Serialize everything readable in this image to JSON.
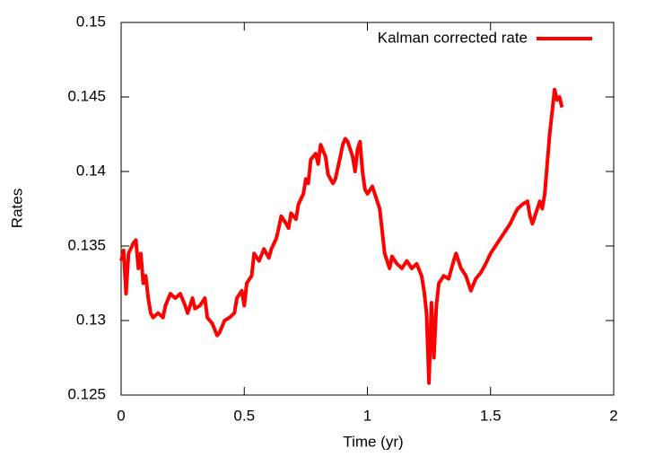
{
  "chart_data": {
    "type": "line",
    "xlabel": "Time (yr)",
    "ylabel": "Rates",
    "legend": "top-right",
    "x": [
      0,
      0.01,
      0.02,
      0.03,
      0.05,
      0.06,
      0.07,
      0.08,
      0.09,
      0.1,
      0.11,
      0.12,
      0.13,
      0.15,
      0.17,
      0.18,
      0.2,
      0.22,
      0.24,
      0.26,
      0.27,
      0.29,
      0.3,
      0.32,
      0.34,
      0.35,
      0.37,
      0.39,
      0.4,
      0.42,
      0.44,
      0.46,
      0.47,
      0.49,
      0.5,
      0.51,
      0.53,
      0.54,
      0.56,
      0.58,
      0.6,
      0.61,
      0.63,
      0.64,
      0.65,
      0.67,
      0.68,
      0.69,
      0.71,
      0.72,
      0.74,
      0.75,
      0.76,
      0.77,
      0.79,
      0.8,
      0.81,
      0.83,
      0.84,
      0.86,
      0.87,
      0.89,
      0.9,
      0.91,
      0.92,
      0.94,
      0.95,
      0.96,
      0.97,
      0.98,
      0.99,
      1.0,
      1.02,
      1.04,
      1.05,
      1.06,
      1.07,
      1.08,
      1.09,
      1.1,
      1.12,
      1.14,
      1.16,
      1.18,
      1.2,
      1.22,
      1.23,
      1.24,
      1.25,
      1.26,
      1.27,
      1.28,
      1.29,
      1.31,
      1.33,
      1.35,
      1.36,
      1.38,
      1.4,
      1.42,
      1.44,
      1.46,
      1.48,
      1.5,
      1.52,
      1.54,
      1.56,
      1.58,
      1.6,
      1.61,
      1.63,
      1.65,
      1.66,
      1.67,
      1.69,
      1.7,
      1.71,
      1.72,
      1.73,
      1.74,
      1.75,
      1.76,
      1.77,
      1.78,
      1.79
    ],
    "series": [
      {
        "name": "Kalman corrected rate",
        "color": "#ff0000",
        "values": [
          0.134,
          0.1347,
          0.1318,
          0.1345,
          0.1352,
          0.1354,
          0.1335,
          0.1345,
          0.1325,
          0.133,
          0.1315,
          0.1305,
          0.1302,
          0.1305,
          0.1302,
          0.131,
          0.1318,
          0.1315,
          0.1318,
          0.131,
          0.1305,
          0.1315,
          0.1308,
          0.131,
          0.1315,
          0.1302,
          0.1298,
          0.129,
          0.1292,
          0.13,
          0.1302,
          0.1305,
          0.1315,
          0.132,
          0.131,
          0.1325,
          0.133,
          0.1345,
          0.134,
          0.1348,
          0.1342,
          0.1348,
          0.1355,
          0.1362,
          0.137,
          0.1365,
          0.1362,
          0.1372,
          0.1368,
          0.1378,
          0.1385,
          0.1395,
          0.1392,
          0.1408,
          0.1412,
          0.1405,
          0.1418,
          0.141,
          0.1398,
          0.1392,
          0.1395,
          0.141,
          0.1418,
          0.1422,
          0.142,
          0.141,
          0.14,
          0.1415,
          0.142,
          0.14,
          0.1388,
          0.1385,
          0.139,
          0.138,
          0.1375,
          0.136,
          0.1345,
          0.134,
          0.1335,
          0.1343,
          0.1338,
          0.1335,
          0.134,
          0.1335,
          0.1338,
          0.133,
          0.132,
          0.1305,
          0.1258,
          0.1312,
          0.1275,
          0.131,
          0.1325,
          0.133,
          0.1328,
          0.134,
          0.1345,
          0.1335,
          0.133,
          0.132,
          0.1328,
          0.1332,
          0.1338,
          0.1345,
          0.135,
          0.1355,
          0.136,
          0.1365,
          0.1372,
          0.1375,
          0.1378,
          0.138,
          0.137,
          0.1365,
          0.1375,
          0.138,
          0.1375,
          0.1385,
          0.1405,
          0.1425,
          0.144,
          0.1455,
          0.1448,
          0.145,
          0.1443
        ]
      }
    ],
    "xlim": [
      0,
      2
    ],
    "xticks": [
      0,
      0.5,
      1,
      1.5,
      2
    ],
    "ylim": [
      0.125,
      0.15
    ],
    "yticks": [
      0.125,
      0.13,
      0.135,
      0.14,
      0.145,
      0.15
    ]
  }
}
